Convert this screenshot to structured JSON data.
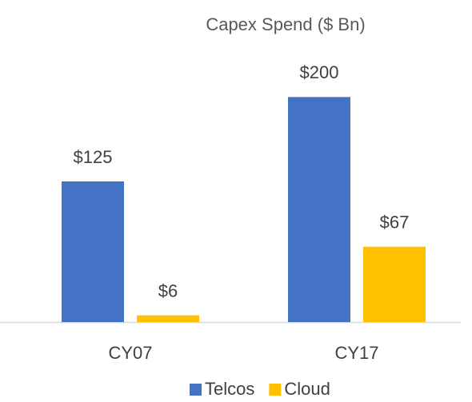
{
  "chart_data": {
    "type": "bar",
    "title": "Capex Spend ($ Bn)",
    "categories": [
      "CY07",
      "CY17"
    ],
    "series": [
      {
        "name": "Telcos",
        "color": "#4472c4",
        "values": [
          125,
          200
        ],
        "value_labels": [
          "$125",
          "$200"
        ]
      },
      {
        "name": "Cloud",
        "color": "#ffc000",
        "values": [
          6,
          67
        ],
        "value_labels": [
          "$6",
          "$67"
        ]
      }
    ],
    "ylim": [
      0,
      250
    ],
    "legend": "bottom"
  }
}
